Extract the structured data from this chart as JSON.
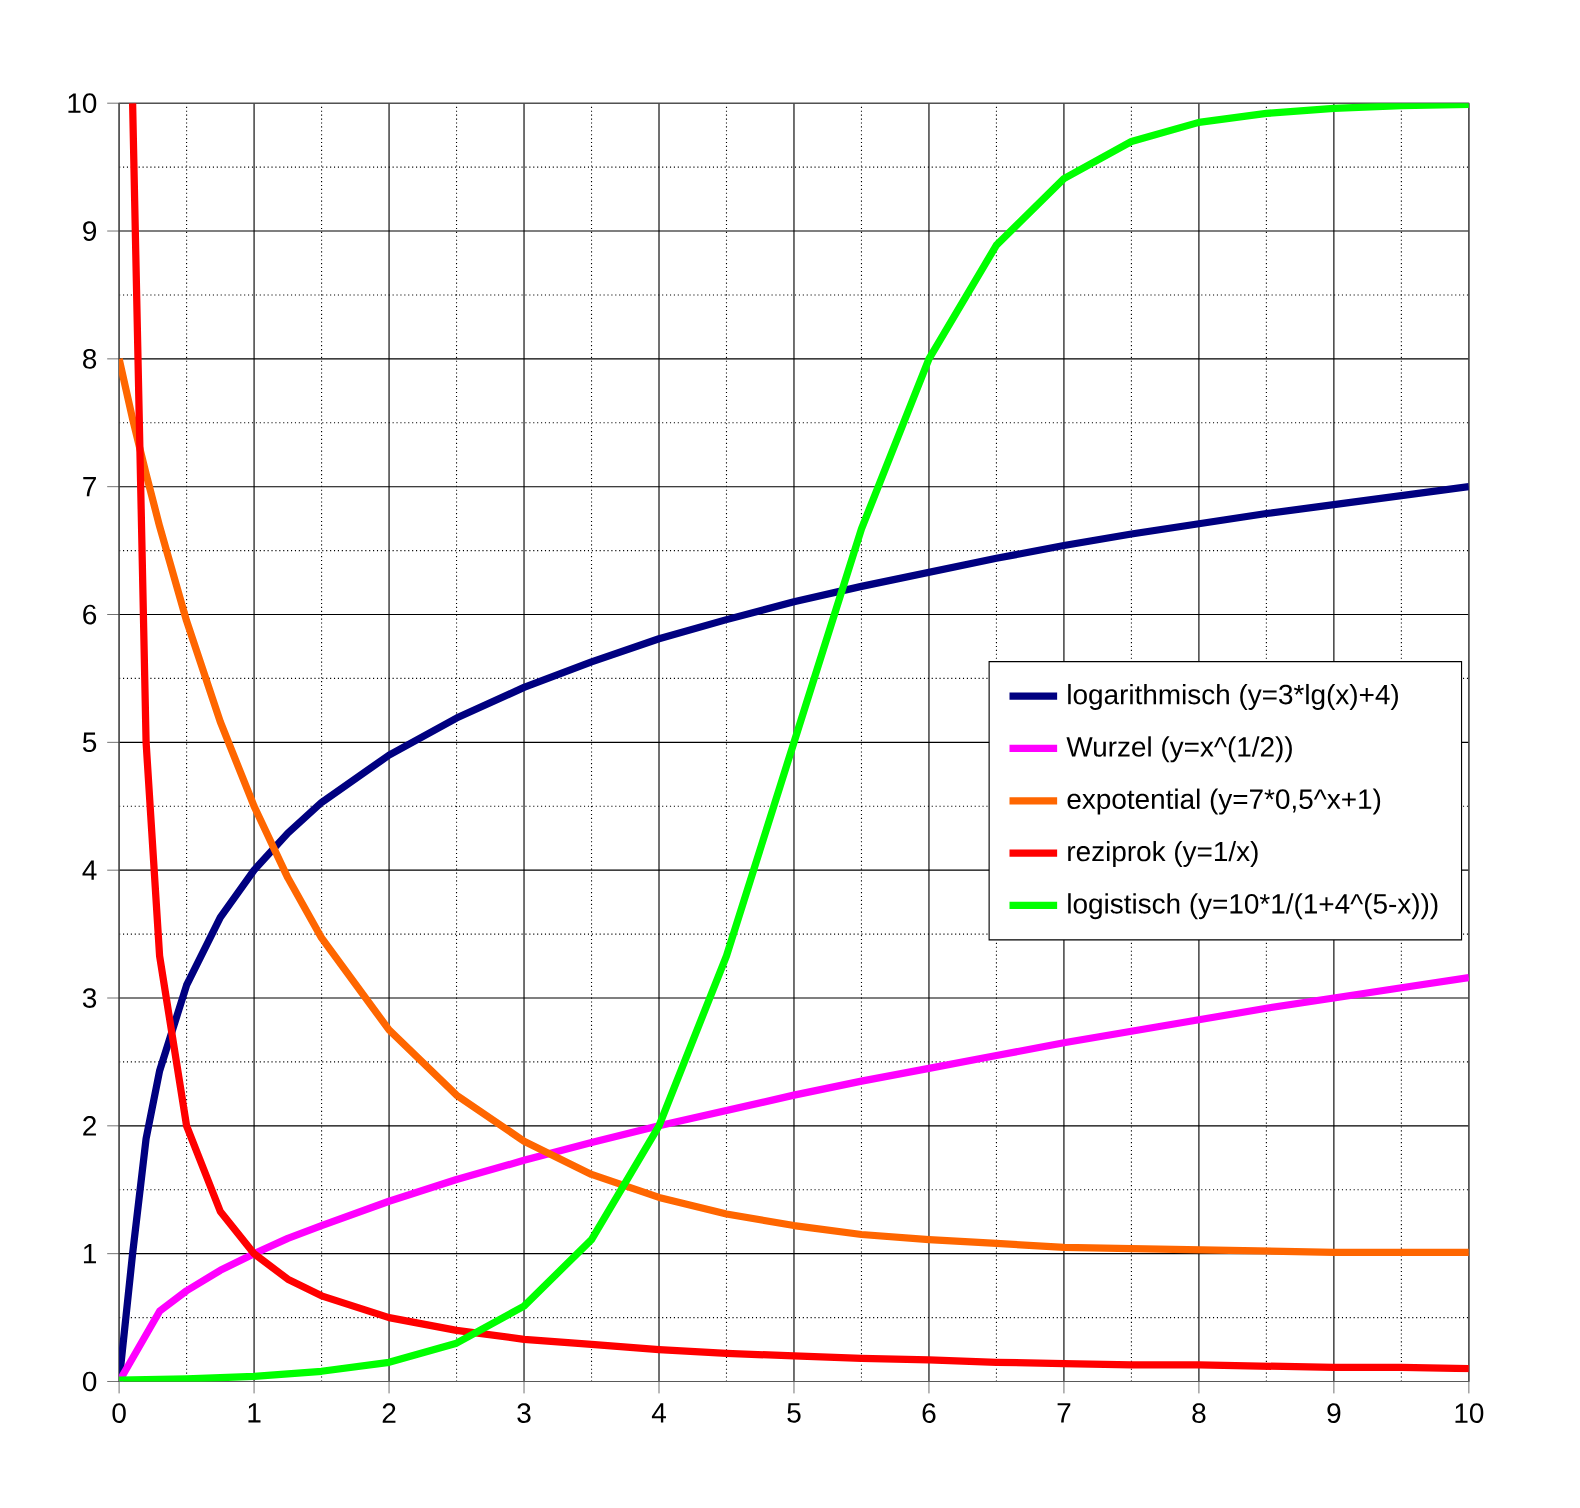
{
  "chart_data": {
    "type": "line",
    "x": [
      0,
      0.1,
      0.2,
      0.3,
      0.5,
      0.75,
      1,
      1.25,
      1.5,
      2,
      2.5,
      3,
      3.5,
      4,
      4.5,
      5,
      5.5,
      6,
      6.5,
      7,
      7.5,
      8,
      8.5,
      9,
      9.5,
      10
    ],
    "series": [
      {
        "name": "logarithmisch (y=3*lg(x)+4)",
        "color": "#000080",
        "values": [
          0,
          1.0,
          1.9,
          2.43,
          3.1,
          3.63,
          4,
          4.29,
          4.53,
          4.9,
          5.19,
          5.43,
          5.63,
          5.81,
          5.96,
          6.1,
          6.22,
          6.33,
          6.44,
          6.54,
          6.63,
          6.71,
          6.79,
          6.86,
          6.93,
          7
        ]
      },
      {
        "name": "Wurzel (y=x^(1/2))",
        "color": "#ff00ff",
        "x": [
          0,
          0.3,
          0.5,
          0.75,
          1,
          1.25,
          1.5,
          2,
          2.5,
          3,
          3.5,
          4,
          4.5,
          5,
          5.5,
          6,
          6.5,
          7,
          7.5,
          8,
          8.5,
          9,
          9.5,
          10
        ],
        "values": [
          0,
          0.55,
          0.71,
          0.87,
          1,
          1.12,
          1.22,
          1.41,
          1.58,
          1.73,
          1.87,
          2,
          2.12,
          2.24,
          2.35,
          2.45,
          2.55,
          2.65,
          2.74,
          2.83,
          2.92,
          3,
          3.08,
          3.16
        ]
      },
      {
        "name": "expotential (y=7*0,5^x+1)",
        "color": "#ff6600",
        "values": [
          8,
          7.53,
          7.1,
          6.69,
          5.95,
          5.16,
          4.5,
          3.94,
          3.47,
          2.75,
          2.24,
          1.88,
          1.62,
          1.44,
          1.31,
          1.22,
          1.15,
          1.11,
          1.08,
          1.05,
          1.04,
          1.03,
          1.02,
          1.01,
          1.01,
          1.01
        ]
      },
      {
        "name": "reziprok (y=1/x)",
        "color": "#ff0000",
        "x": [
          0.1,
          0.2,
          0.3,
          0.5,
          0.75,
          1,
          1.25,
          1.5,
          2,
          2.5,
          3,
          3.5,
          4,
          4.5,
          5,
          5.5,
          6,
          6.5,
          7,
          7.5,
          8,
          8.5,
          9,
          9.5,
          10
        ],
        "values": [
          10,
          5,
          3.33,
          2,
          1.33,
          1,
          0.8,
          0.67,
          0.5,
          0.4,
          0.33,
          0.29,
          0.25,
          0.22,
          0.2,
          0.18,
          0.17,
          0.15,
          0.14,
          0.13,
          0.13,
          0.12,
          0.11,
          0.11,
          0.1
        ]
      },
      {
        "name": "logistisch (y=10*1/(1+4^(5-x)))",
        "color": "#00ff00",
        "x": [
          0,
          0.5,
          1,
          1.5,
          2,
          2.5,
          3,
          3.5,
          4,
          4.5,
          5,
          5.5,
          6,
          6.5,
          7,
          7.5,
          8,
          8.5,
          9,
          9.5,
          10
        ],
        "values": [
          0.01,
          0.02,
          0.04,
          0.08,
          0.15,
          0.3,
          0.59,
          1.11,
          2,
          3.33,
          5,
          6.67,
          8,
          8.89,
          9.41,
          9.7,
          9.85,
          9.92,
          9.96,
          9.98,
          9.99
        ]
      }
    ],
    "xlim": [
      0,
      10
    ],
    "ylim": [
      0,
      10
    ],
    "xticks": [
      0,
      1,
      2,
      3,
      4,
      5,
      6,
      7,
      8,
      9,
      10
    ],
    "yticks": [
      0,
      1,
      2,
      3,
      4,
      5,
      6,
      7,
      8,
      9,
      10
    ],
    "grid": true,
    "legend": "right",
    "marker": "none",
    "line_style": "solid"
  }
}
